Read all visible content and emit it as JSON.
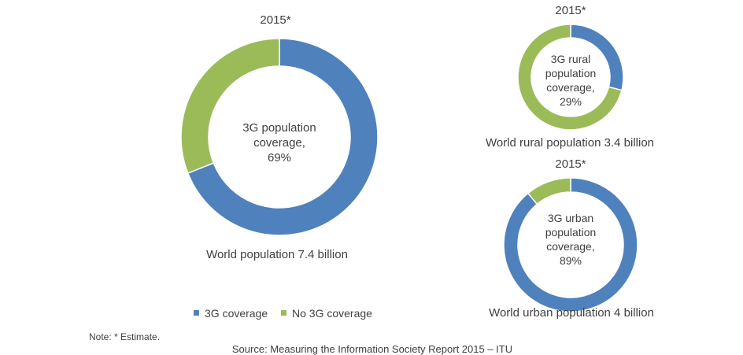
{
  "chart_data": [
    {
      "type": "pie",
      "variant": "donut",
      "year_label": "2015*",
      "center_label": [
        "3G population",
        "coverage,",
        "69%"
      ],
      "caption": "World population 7.4 billion",
      "categories": [
        "3G coverage",
        "No 3G coverage"
      ],
      "values": [
        69,
        31
      ],
      "colors": [
        "#4f81bd",
        "#9bbb59"
      ]
    },
    {
      "type": "pie",
      "variant": "donut",
      "year_label": "2015*",
      "center_label": [
        "3G rural",
        "population",
        "coverage,",
        "29%"
      ],
      "caption": "World  rural population 3.4 billion",
      "categories": [
        "3G coverage",
        "No 3G coverage"
      ],
      "values": [
        29,
        71
      ],
      "colors": [
        "#4f81bd",
        "#9bbb59"
      ]
    },
    {
      "type": "pie",
      "variant": "donut",
      "year_label": "2015*",
      "center_label": [
        "3G urban",
        "population",
        "coverage,",
        "89%"
      ],
      "caption": "World urban population 4 billion",
      "categories": [
        "3G coverage",
        "No 3G coverage"
      ],
      "values": [
        89,
        11
      ],
      "colors": [
        "#4f81bd",
        "#9bbb59"
      ]
    }
  ],
  "legend": {
    "items": [
      {
        "label": "3G coverage",
        "color": "#4f81bd"
      },
      {
        "label": "No 3G coverage",
        "color": "#9bbb59"
      }
    ]
  },
  "note": "Note: * Estimate.",
  "source": "Source: Measuring the Information Society Report 2015 – ITU"
}
